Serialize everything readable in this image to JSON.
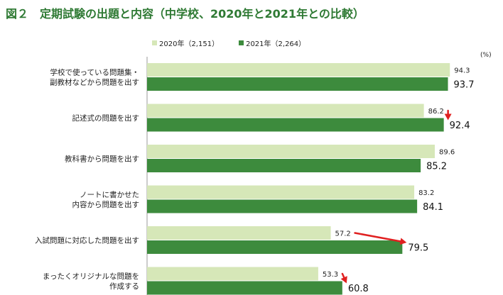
{
  "chart_data": {
    "type": "bar",
    "orientation": "horizontal",
    "title": "図２　定期試験の出題と内容（中学校、2020年と2021年との比較）",
    "unit": "(%)",
    "legend_placement": "top",
    "categories": [
      [
        "学校で使っている問題集・",
        "副教材などから問題を出す"
      ],
      [
        "記述式の問題を出す"
      ],
      [
        "教科書から問題を出す"
      ],
      [
        "ノートに書かせた",
        "内容から問題を出す"
      ],
      [
        "入試問題に対応した問題を出す"
      ],
      [
        "まったくオリジナルな問題を",
        "作成する"
      ]
    ],
    "series": [
      {
        "name": "2020年（2,151）",
        "color": "#d6e7b8",
        "values": [
          94.3,
          86.2,
          89.6,
          83.2,
          57.2,
          53.3
        ]
      },
      {
        "name": "2021年（2,264）",
        "color": "#3d8b3d",
        "values": [
          93.7,
          92.4,
          85.2,
          84.1,
          79.5,
          60.8
        ]
      }
    ],
    "annotations": [
      {
        "type": "red-arrow",
        "category_index": 1
      },
      {
        "type": "red-arrow",
        "category_index": 4
      },
      {
        "type": "red-arrow",
        "category_index": 5
      }
    ],
    "xlim": [
      0,
      100
    ],
    "grid": false,
    "arrow_color": "#e02020"
  }
}
